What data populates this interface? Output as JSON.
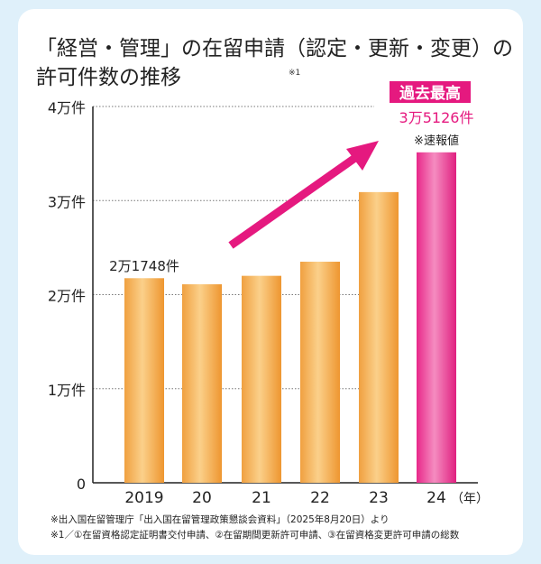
{
  "chart_data": {
    "type": "bar",
    "title_line1": "「経営・管理」の在留申請（認定・更新・変更）の",
    "title_line2": "許可件数の推移",
    "title_note": "※1",
    "categories": [
      "2019",
      "20",
      "21",
      "22",
      "23",
      "24"
    ],
    "x_unit": "（年）",
    "values": [
      21748,
      21100,
      22000,
      23500,
      30900,
      35126
    ],
    "ylim": [
      0,
      40000
    ],
    "y_ticks": [
      {
        "value": 0,
        "label": "0"
      },
      {
        "value": 10000,
        "label": "1万件"
      },
      {
        "value": 20000,
        "label": "2万件"
      },
      {
        "value": 30000,
        "label": "3万件"
      },
      {
        "value": 40000,
        "label": "4万件"
      }
    ],
    "grid": "dotted horizontal",
    "bar_colors": [
      "#f2a444",
      "#f2a444",
      "#f2a444",
      "#f2a444",
      "#f2a444",
      "#e8288a"
    ],
    "annotations": {
      "first_value_label": "2万1748件",
      "record_badge": "過去最高",
      "last_value_label": "3万5126件",
      "preliminary_note": "※速報値",
      "trend_arrow": "upward arrow",
      "accent_color": "#e5197f"
    }
  },
  "footnotes": [
    "※出入国在留管理庁「出入国在留管理政策懇談会資料」（2025年8月20日）より",
    "※1／①在留資格認定証明書交付申請、②在留期間更新許可申請、③在留資格変更許可申請の総数"
  ]
}
